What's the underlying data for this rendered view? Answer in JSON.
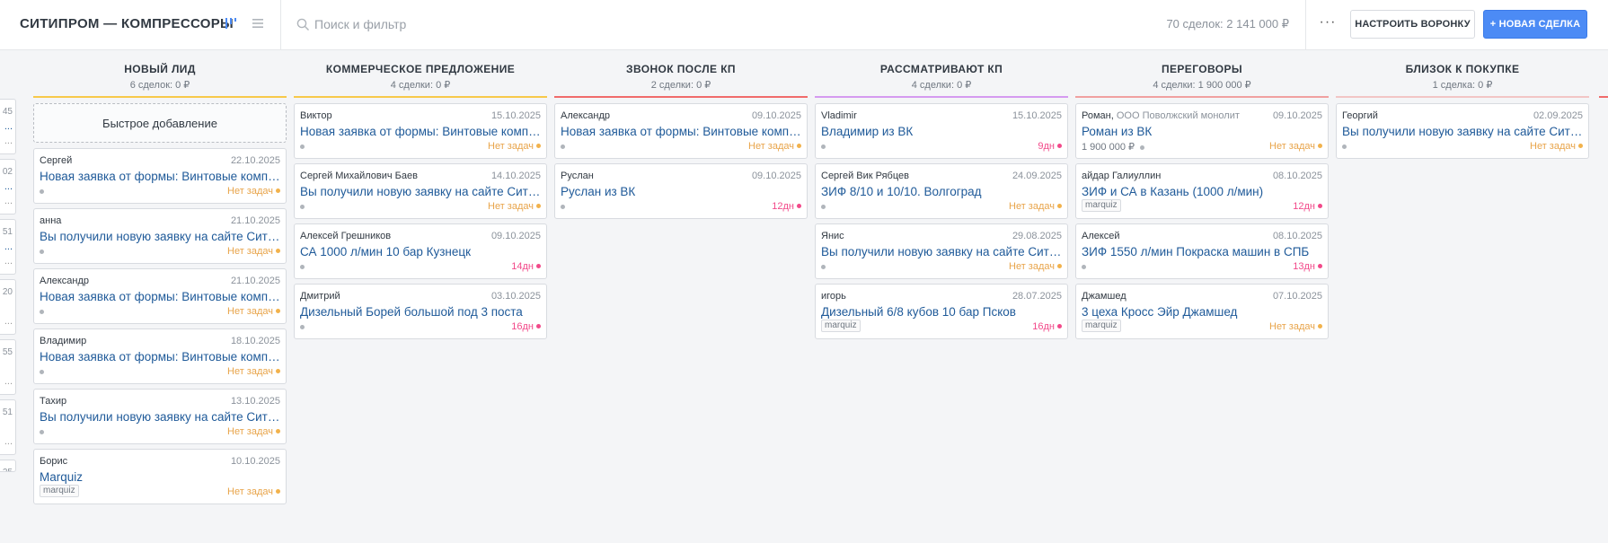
{
  "header": {
    "title": "СИТИПРОМ — КОМПРЕССОРЫ",
    "search_placeholder": "Поиск и фильтр",
    "summary": "70 сделок: 2 141 000 ₽",
    "more_label": "···",
    "funnel_button": "НАСТРОИТЬ ВОРОНКУ",
    "new_deal_button": "+ НОВАЯ СДЕЛКА"
  },
  "ghost_column": {
    "cards": [
      {
        "date": "45",
        "title": "...",
        "foot": "..."
      },
      {
        "date": "02",
        "title": "...",
        "foot": "..."
      },
      {
        "date": "51",
        "title": "...",
        "foot": "..."
      },
      {
        "date": "20",
        "title": "",
        "foot": "..."
      },
      {
        "date": "55",
        "title": "",
        "foot": "..."
      },
      {
        "date": "51",
        "title": "",
        "foot": "..."
      },
      {
        "date": "25",
        "title": "",
        "foot": ""
      }
    ]
  },
  "quick_add_label": "Быстрое добавление",
  "columns": [
    {
      "title": "НОВЫЙ ЛИД",
      "subtitle": "6 сделок: 0 ₽",
      "color": "#f7c94a",
      "cards": [
        {
          "contact": "Сергей",
          "company": "",
          "date": "22.10.2025",
          "title": "Новая заявка от формы: Винтовые компрессоры",
          "price": "",
          "tag": "",
          "task": "Нет задач",
          "task_type": "none"
        },
        {
          "contact": "анна",
          "company": "",
          "date": "21.10.2025",
          "title": "Вы получили новую заявку на сайте Ситипром",
          "price": "",
          "tag": "",
          "task": "Нет задач",
          "task_type": "none"
        },
        {
          "contact": "Александр",
          "company": "",
          "date": "21.10.2025",
          "title": "Новая заявка от формы: Винтовые компрессоры",
          "price": "",
          "tag": "",
          "task": "Нет задач",
          "task_type": "none"
        },
        {
          "contact": "Владимир",
          "company": "",
          "date": "18.10.2025",
          "title": "Новая заявка от формы: Винтовые компрессоры",
          "price": "",
          "tag": "",
          "task": "Нет задач",
          "task_type": "none"
        },
        {
          "contact": "Тахир",
          "company": "",
          "date": "13.10.2025",
          "title": "Вы получили новую заявку на сайте Ситипром",
          "price": "",
          "tag": "",
          "task": "Нет задач",
          "task_type": "none"
        },
        {
          "contact": "Борис",
          "company": "",
          "date": "10.10.2025",
          "title": "Marquiz",
          "price": "",
          "tag": "marquiz",
          "task": "Нет задач",
          "task_type": "none"
        }
      ]
    },
    {
      "title": "КОММЕРЧЕСКОЕ ПРЕДЛОЖЕНИЕ",
      "subtitle": "4 сделки: 0 ₽",
      "color": "#f7c94a",
      "cards": [
        {
          "contact": "Виктор",
          "company": "",
          "date": "15.10.2025",
          "title": "Новая заявка от формы: Винтовые компрессоры",
          "price": "",
          "tag": "",
          "task": "Нет задач",
          "task_type": "none"
        },
        {
          "contact": "Сергей Михайлович Баев",
          "company": "",
          "date": "14.10.2025",
          "title": "Вы получили новую заявку на сайте Ситипром",
          "price": "",
          "tag": "",
          "task": "Нет задач",
          "task_type": "none"
        },
        {
          "contact": "Алексей Грешников",
          "company": "",
          "date": "09.10.2025",
          "title": "СА 1000 л/мин 10 бар Кузнецк",
          "price": "",
          "tag": "",
          "task": "14дн",
          "task_type": "late"
        },
        {
          "contact": "Дмитрий",
          "company": "",
          "date": "03.10.2025",
          "title": "Дизельный Борей большой под 3 поста",
          "price": "",
          "tag": "",
          "task": "16дн",
          "task_type": "late"
        }
      ]
    },
    {
      "title": "ЗВОНОК ПОСЛЕ КП",
      "subtitle": "2 сделки: 0 ₽",
      "color": "#f06b6b",
      "cards": [
        {
          "contact": "Александр",
          "company": "",
          "date": "09.10.2025",
          "title": "Новая заявка от формы: Винтовые компрессоры",
          "price": "",
          "tag": "",
          "task": "Нет задач",
          "task_type": "none"
        },
        {
          "contact": "Руслан",
          "company": "",
          "date": "09.10.2025",
          "title": "Руслан из ВК",
          "price": "",
          "tag": "",
          "task": "12дн",
          "task_type": "late"
        }
      ]
    },
    {
      "title": "РАССМАТРИВАЮТ КП",
      "subtitle": "4 сделки: 0 ₽",
      "color": "#d59af0",
      "cards": [
        {
          "contact": "Vladimir",
          "company": "",
          "date": "15.10.2025",
          "title": "Владимир из ВК",
          "price": "",
          "tag": "",
          "task": "9дн",
          "task_type": "late"
        },
        {
          "contact": "Сергей Вик Рябцев",
          "company": "",
          "date": "24.09.2025",
          "title": "ЗИФ 8/10 и 10/10. Волгоград",
          "price": "",
          "tag": "",
          "task": "Нет задач",
          "task_type": "none"
        },
        {
          "contact": "Янис",
          "company": "",
          "date": "29.08.2025",
          "title": "Вы получили новую заявку на сайте Ситипром",
          "price": "",
          "tag": "",
          "task": "Нет задач",
          "task_type": "none"
        },
        {
          "contact": "игорь",
          "company": "",
          "date": "28.07.2025",
          "title": "Дизельный 6/8 кубов 10 бар Псков",
          "price": "",
          "tag": "marquiz",
          "task": "16дн",
          "task_type": "late"
        }
      ]
    },
    {
      "title": "ПЕРЕГОВОРЫ",
      "subtitle": "4 сделки: 1 900 000 ₽",
      "color": "#f0a0a0",
      "cards": [
        {
          "contact": "Роман,",
          "company": "ООО Поволжский монолит",
          "date": "09.10.2025",
          "title": "Роман из ВК",
          "price": "1 900 000 ₽",
          "tag": "",
          "task": "Нет задач",
          "task_type": "none"
        },
        {
          "contact": "айдар Галиуллин",
          "company": "",
          "date": "08.10.2025",
          "title": "ЗИФ и СА в Казань (1000 л/мин)",
          "price": "",
          "tag": "marquiz",
          "task": "12дн",
          "task_type": "late"
        },
        {
          "contact": "Алексей",
          "company": "",
          "date": "08.10.2025",
          "title": "ЗИФ 1550 л/мин Покраска машин в СПБ",
          "price": "",
          "tag": "",
          "task": "13дн",
          "task_type": "late"
        },
        {
          "contact": "Джамшед",
          "company": "",
          "date": "07.10.2025",
          "title": "3 цеха Кросс Эйр Джамшед",
          "price": "",
          "tag": "marquiz",
          "task": "Нет задач",
          "task_type": "none"
        }
      ]
    },
    {
      "title": "БЛИЗОК К ПОКУПКЕ",
      "subtitle": "1 сделка: 0 ₽",
      "color": "#f2c5c5",
      "cards": [
        {
          "contact": "Георгий",
          "company": "",
          "date": "02.09.2025",
          "title": "Вы получили новую заявку на сайте Ситипром",
          "price": "",
          "tag": "",
          "task": "Нет задач",
          "task_type": "none"
        }
      ]
    }
  ]
}
